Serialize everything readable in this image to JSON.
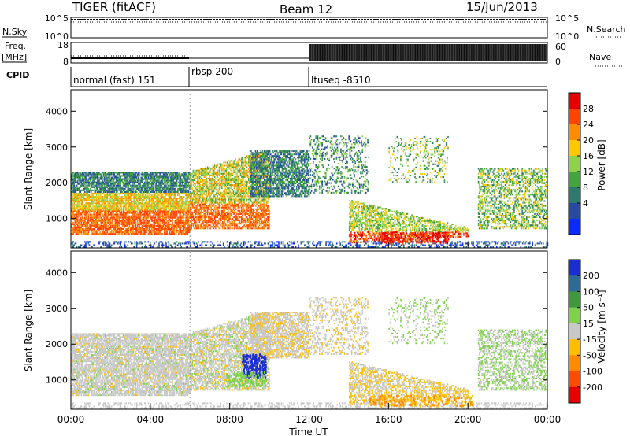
{
  "header": {
    "radar": "TIGER (fitACF)",
    "beam": "Beam 12",
    "date": "15/Jun/2013"
  },
  "ancillary": {
    "nsky_label": "N.Sky",
    "nsearch_label": "N.Search",
    "freq_label_1": "Freq.",
    "freq_label_2": "[MHz]",
    "nave_label": "Nave",
    "cpid_label": "CPID",
    "noise_ticks": [
      "10^5",
      "10^0"
    ],
    "freq_ticks": [
      "18",
      "8"
    ],
    "nave_ticks": [
      "60",
      "0"
    ],
    "cpid_segments": [
      {
        "label": "normal (fast) 151",
        "start": 0,
        "end": 6
      },
      {
        "label": "rbsp 200",
        "start": 6,
        "end": 12
      },
      {
        "label": "ltuseq -8510",
        "start": 12,
        "end": 24
      }
    ]
  },
  "chart_data": [
    {
      "type": "heatmap",
      "quantity": "Power",
      "xlabel": "",
      "ylabel": "Slant Range [km]",
      "xlim": [
        0,
        24
      ],
      "ylim": [
        180,
        4600
      ],
      "yticks": [
        1000,
        2000,
        3000,
        4000
      ],
      "colorbar": {
        "label": "Power [dB]",
        "ticks": [
          "28",
          "24",
          "20",
          "16",
          "12",
          "8",
          "4"
        ],
        "colors": [
          "#e60000",
          "#ff4400",
          "#ff8c00",
          "#ffc800",
          "#8ed24a",
          "#43a63c",
          "#2d7a6e",
          "#274aa0",
          "#0a2bff"
        ]
      }
    },
    {
      "type": "heatmap",
      "quantity": "Velocity",
      "xlabel": "Time UT",
      "ylabel": "Slant Range [km]",
      "xlim": [
        0,
        24
      ],
      "ylim": [
        180,
        4600
      ],
      "yticks": [
        1000,
        2000,
        3000,
        4000
      ],
      "xticks": [
        "00:00",
        "04:00",
        "08:00",
        "12:00",
        "16:00",
        "20:00",
        "00:00"
      ],
      "colorbar": {
        "label": "Velocity [m s⁻¹]",
        "ticks": [
          "200",
          "100",
          "50",
          "15",
          "-15",
          "-50",
          "-100",
          "-200"
        ],
        "colors": [
          "#1a2fd1",
          "#2c6b96",
          "#3f9a3c",
          "#7ed24a",
          "#c8c8c8",
          "#ffbf00",
          "#ff8a00",
          "#ff4a00",
          "#e80000"
        ]
      }
    }
  ]
}
